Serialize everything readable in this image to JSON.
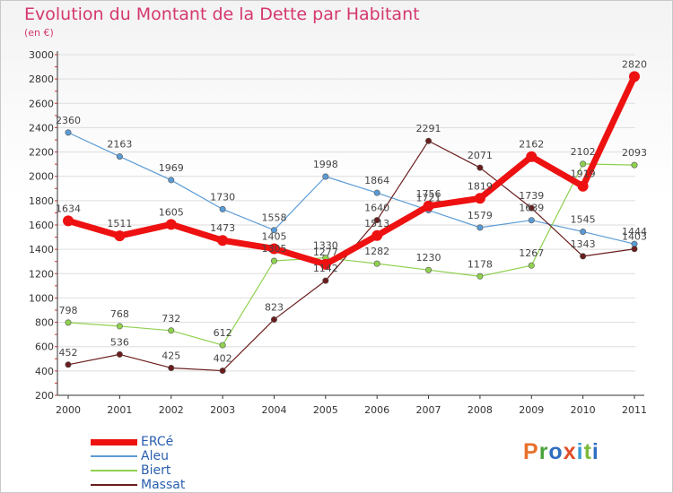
{
  "title": "Evolution du Montant de la Dette par Habitant",
  "subtitle": "(en €)",
  "logo": {
    "text": "Proxiti",
    "colors": [
      "#e8712b",
      "#4aa23b",
      "#2f6fc0",
      "#e04f2a",
      "#3b9bd8",
      "#7dbb3b",
      "#2f6fc0"
    ]
  },
  "colors": {
    "title": "#d5376f",
    "legend_text": "#2a5fae",
    "axis": "#333333",
    "grid": "#dddddd"
  },
  "chart_data": {
    "type": "line",
    "x": [
      "2000",
      "2001",
      "2002",
      "2003",
      "2004",
      "2005",
      "2006",
      "2007",
      "2008",
      "2009",
      "2010",
      "2011"
    ],
    "ylim": [
      200,
      3000
    ],
    "yticks": [
      200,
      400,
      600,
      800,
      1000,
      1200,
      1400,
      1600,
      1800,
      2000,
      2200,
      2400,
      2600,
      2800,
      3000
    ],
    "grid": "horizontal",
    "legend_position": "bottom-left",
    "series": [
      {
        "name": "Aleu",
        "color": "#5b9bd5",
        "values": [
          2360,
          2163,
          1969,
          1730,
          1558,
          1998,
          1864,
          1721,
          1579,
          1639,
          1545,
          1444
        ]
      },
      {
        "name": "Biert",
        "color": "#8fd14f",
        "values": [
          798,
          768,
          732,
          612,
          1305,
          1330,
          1282,
          1230,
          1178,
          1267,
          2102,
          2093
        ]
      },
      {
        "name": "Massat",
        "color": "#6b1d1d",
        "values": [
          452,
          536,
          425,
          402,
          823,
          1142,
          1640,
          2291,
          2071,
          1739,
          1343,
          1403
        ]
      },
      {
        "name": "ERCé",
        "color": "#ee1111",
        "values": [
          1634,
          1511,
          1605,
          1473,
          1405,
          1277,
          1513,
          1756,
          1819,
          2162,
          1919,
          2820
        ]
      }
    ]
  }
}
